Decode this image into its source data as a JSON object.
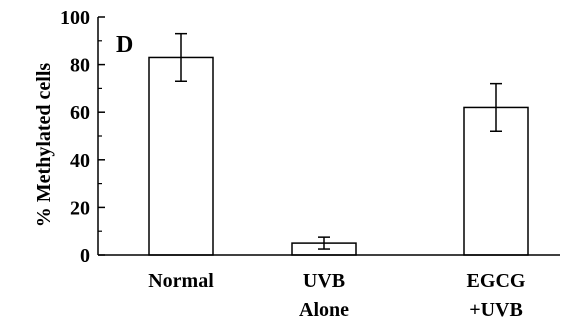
{
  "chart_data": {
    "type": "bar",
    "panel_label": "D",
    "categories": [
      [
        "Normal"
      ],
      [
        "UVB",
        "Alone"
      ],
      [
        "EGCG",
        "+UVB"
      ]
    ],
    "values": [
      83,
      5,
      62
    ],
    "error": [
      10,
      2.5,
      10
    ],
    "ylabel": "%  Methylated cells",
    "ylim": [
      0,
      100
    ],
    "yticks": [
      0,
      20,
      40,
      60,
      80,
      100
    ],
    "grid": false,
    "bar_fill": "#ffffff",
    "bar_stroke": "#000000"
  }
}
